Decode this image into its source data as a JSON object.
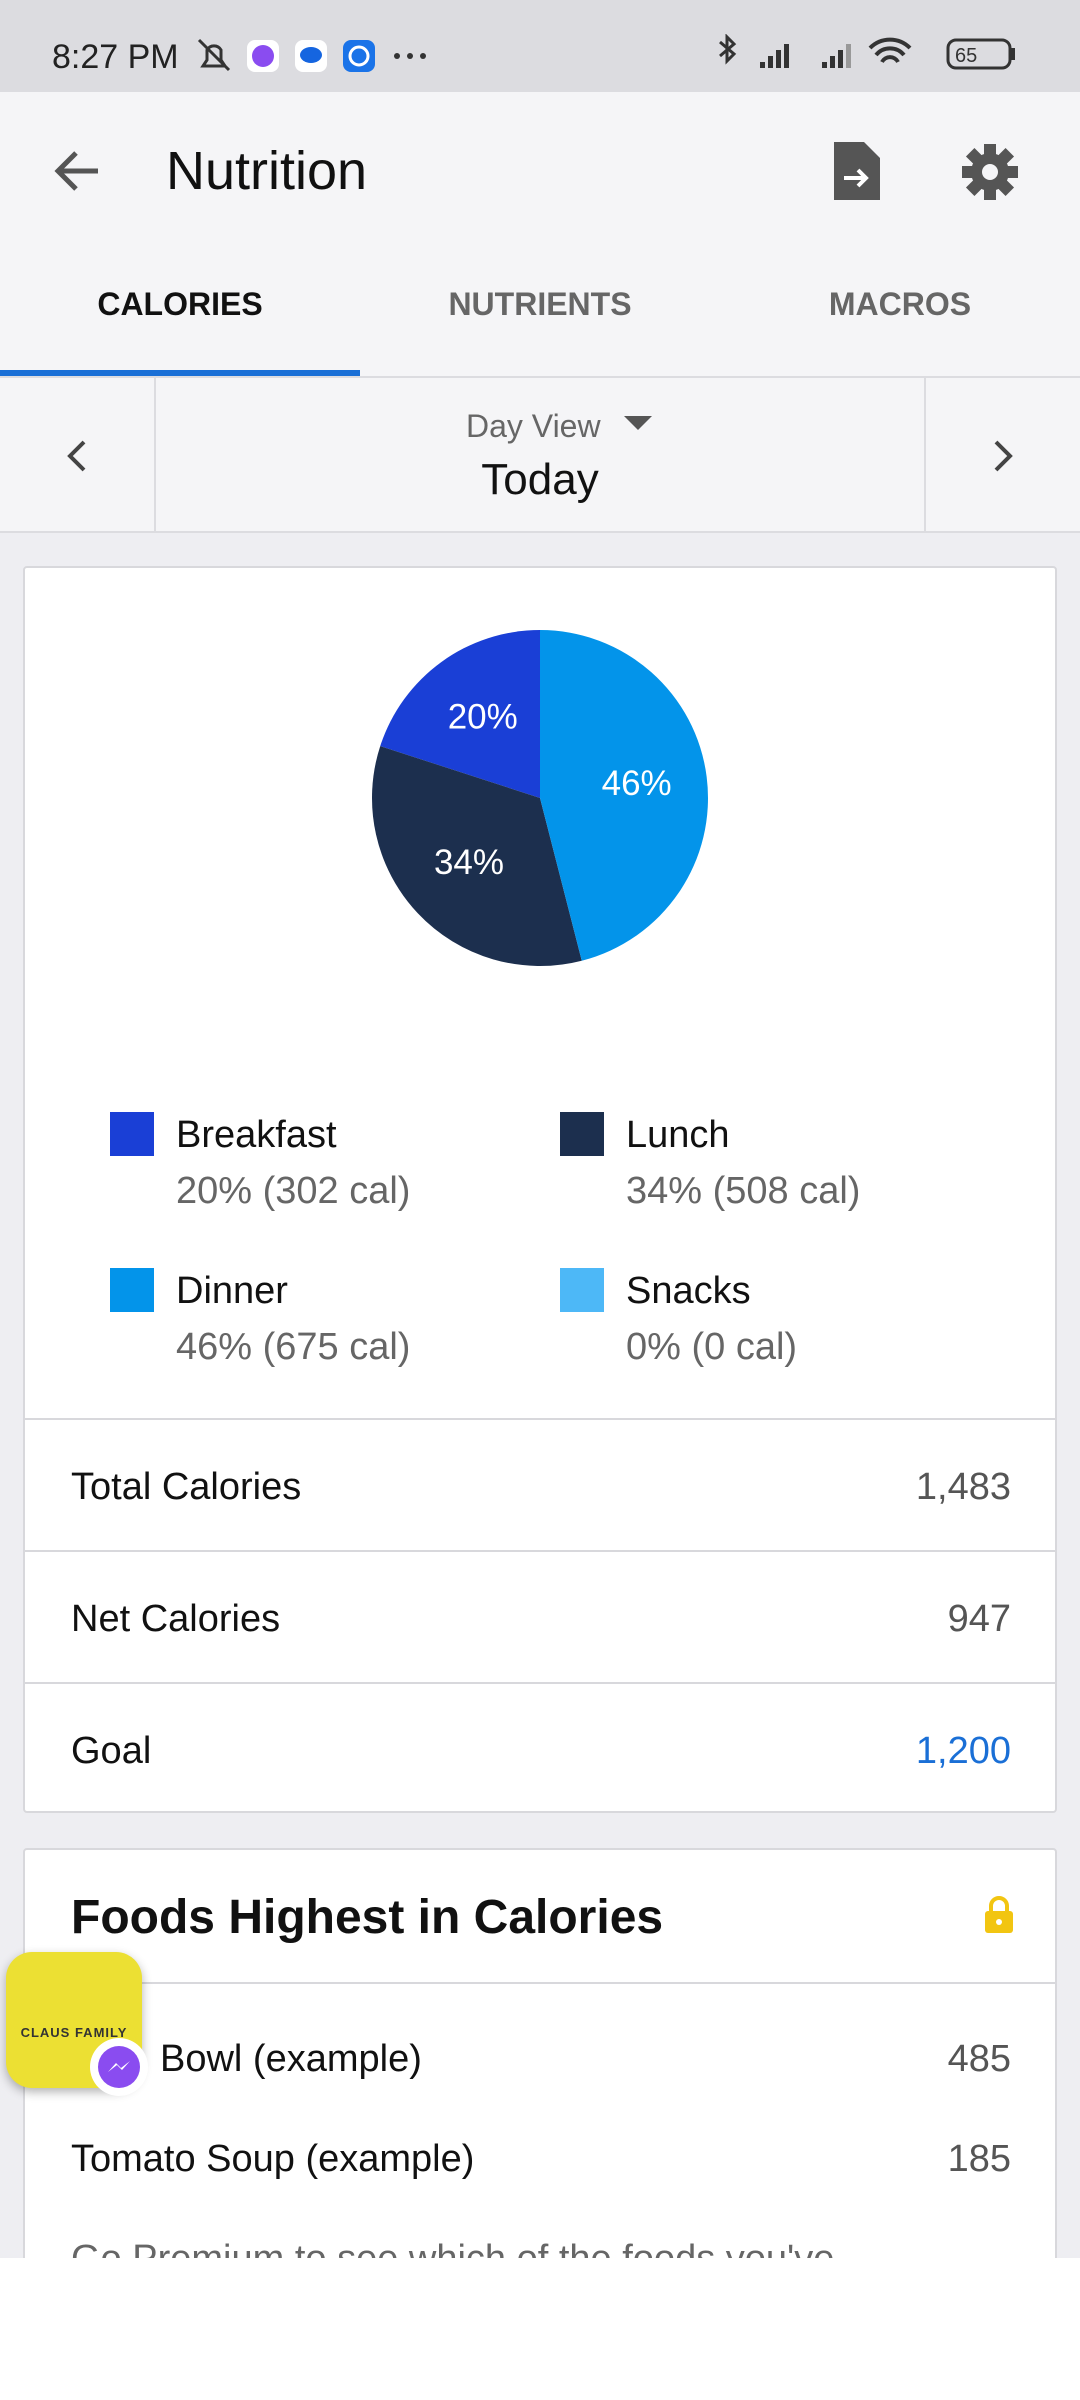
{
  "status_bar": {
    "time": "8:27 PM",
    "battery": "65"
  },
  "header": {
    "title": "Nutrition"
  },
  "tabs": [
    "CALORIES",
    "NUTRIENTS",
    "MACROS"
  ],
  "date_nav": {
    "view": "Day View",
    "date": "Today"
  },
  "chart_data": {
    "type": "pie",
    "categories": [
      "Breakfast",
      "Lunch",
      "Dinner",
      "Snacks"
    ],
    "values": [
      20,
      34,
      46,
      0
    ],
    "value_labels": [
      "20%",
      "34%",
      "46%",
      null
    ],
    "colors": [
      "#1a3fd6",
      "#1c2f4e",
      "#0394ea",
      "#4db8f7"
    ],
    "legend_details": [
      "20% (302 cal)",
      "34% (508 cal)",
      "46% (675 cal)",
      "0% (0 cal)"
    ]
  },
  "summary": [
    {
      "label": "Total Calories",
      "value": "1,483"
    },
    {
      "label": "Net Calories",
      "value": "947"
    },
    {
      "label": "Goal",
      "value": "1,200"
    }
  ],
  "foods": {
    "title": "Foods Highest in Calories",
    "rows": [
      {
        "name": "Bowl (example)",
        "value": "485"
      },
      {
        "name": "Tomato Soup (example)",
        "value": "185"
      }
    ],
    "note": "Go Premium to see which of the foods you've"
  },
  "bubble": {
    "label": "CLAUS FAMILY"
  }
}
